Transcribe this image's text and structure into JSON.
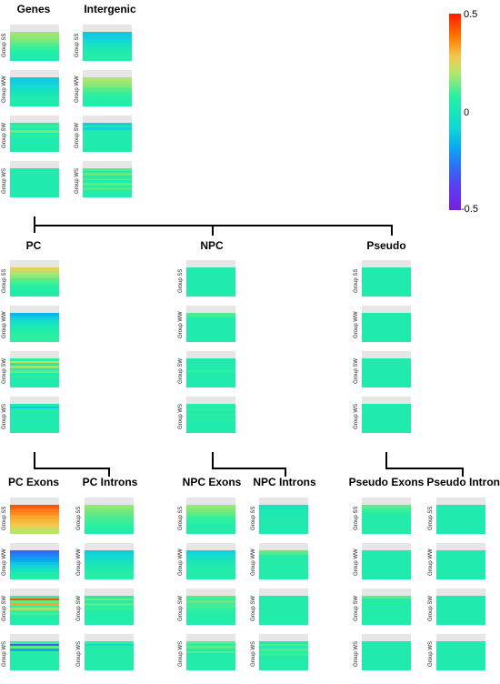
{
  "colorbar": {
    "max_label": "0.5",
    "mid_label": "0",
    "min_label": "-0.5"
  },
  "groups": [
    "Group SS",
    "Group WW",
    "Group SW",
    "Group WS"
  ],
  "panels": [
    {
      "title": "Genes",
      "rows": [
        [
          0.15,
          0.15,
          0.14,
          0.12,
          0.1,
          0.08,
          0.06,
          0.05,
          0.04,
          0.03,
          0.02,
          0.02
        ],
        [
          -0.05,
          -0.05,
          -0.04,
          -0.03,
          -0.02,
          -0.01,
          0.0,
          0.01,
          0.02,
          0.02,
          0.02,
          0.02
        ],
        [
          0.03,
          0.06,
          0.02,
          0.12,
          0.02,
          0.04,
          0.02,
          0.02,
          0.02,
          0.02,
          0.02,
          0.02
        ],
        [
          0.03,
          0.02,
          0.03,
          0.02,
          0.02,
          0.02,
          0.02,
          0.02,
          0.02,
          0.02,
          0.02,
          0.02
        ]
      ]
    },
    {
      "title": "Intergenic",
      "rows": [
        [
          -0.05,
          -0.05,
          -0.04,
          -0.03,
          -0.02,
          -0.01,
          0.0,
          0.01,
          0.02,
          0.03,
          0.03,
          0.03
        ],
        [
          0.17,
          0.17,
          0.15,
          0.13,
          0.1,
          0.08,
          0.06,
          0.05,
          0.04,
          0.03,
          0.03,
          0.03
        ],
        [
          -0.04,
          0.02,
          -0.04,
          0.02,
          0.02,
          0.02,
          0.02,
          0.02,
          0.02,
          0.02,
          0.02,
          0.02
        ],
        [
          0.08,
          0.03,
          0.1,
          0.03,
          0.08,
          0.03,
          0.1,
          0.03,
          0.08,
          0.03,
          0.03,
          0.03
        ]
      ]
    },
    {
      "title": "PC",
      "rows": [
        [
          0.23,
          0.2,
          0.17,
          0.14,
          0.11,
          0.09,
          0.07,
          0.05,
          0.04,
          0.03,
          0.03,
          0.03
        ],
        [
          -0.08,
          -0.06,
          -0.04,
          -0.02,
          0.0,
          0.01,
          0.02,
          0.03,
          0.04,
          0.05,
          0.05,
          0.05
        ],
        [
          0.05,
          0.2,
          0.03,
          0.15,
          0.02,
          0.1,
          0.02,
          0.04,
          0.02,
          0.02,
          0.02,
          0.02
        ],
        [
          0.02,
          -0.05,
          0.03,
          0.02,
          0.02,
          0.02,
          0.02,
          0.02,
          0.02,
          0.02,
          0.02,
          0.02
        ]
      ]
    },
    {
      "title": "NPC",
      "rows": [
        [
          0.02,
          0.02,
          0.02,
          0.02,
          0.02,
          0.02,
          0.02,
          0.02,
          0.02,
          0.02,
          0.02,
          0.02
        ],
        [
          0.08,
          0.06,
          0.02,
          0.02,
          0.02,
          0.02,
          0.02,
          0.02,
          0.02,
          0.02,
          0.02,
          0.02
        ],
        [
          0.02,
          0.02,
          0.02,
          0.02,
          0.02,
          0.05,
          0.02,
          0.02,
          0.02,
          0.02,
          0.02,
          0.02
        ],
        [
          0.04,
          0.02,
          0.05,
          0.02,
          0.05,
          0.02,
          0.04,
          0.02,
          0.02,
          0.02,
          0.02,
          0.02
        ]
      ]
    },
    {
      "title": "Pseudo",
      "rows": [
        [
          0.02,
          0.02,
          0.02,
          0.02,
          0.02,
          0.02,
          0.02,
          0.02,
          0.02,
          0.02,
          0.02,
          0.02
        ],
        [
          0.02,
          0.02,
          0.02,
          0.02,
          0.02,
          0.02,
          0.02,
          0.02,
          0.02,
          0.02,
          0.02,
          0.02
        ],
        [
          0.02,
          0.02,
          0.02,
          0.02,
          0.02,
          0.02,
          0.02,
          0.02,
          0.02,
          0.02,
          0.02,
          0.02
        ],
        [
          0.02,
          0.02,
          0.02,
          0.02,
          0.02,
          0.02,
          0.02,
          0.02,
          0.02,
          0.02,
          0.02,
          0.02
        ]
      ]
    },
    {
      "title": "PC Exons",
      "rows": [
        [
          0.45,
          0.42,
          0.4,
          0.38,
          0.35,
          0.33,
          0.3,
          0.27,
          0.25,
          0.22,
          0.2,
          0.18
        ],
        [
          -0.22,
          -0.18,
          -0.15,
          -0.12,
          -0.09,
          -0.06,
          -0.04,
          -0.02,
          0.0,
          0.02,
          0.03,
          0.04
        ],
        [
          0.05,
          0.45,
          0.1,
          0.35,
          0.05,
          0.15,
          0.05,
          0.08,
          0.03,
          0.03,
          0.03,
          0.03
        ],
        [
          0.05,
          -0.25,
          0.1,
          -0.1,
          0.05,
          0.03,
          0.03,
          0.03,
          0.03,
          0.03,
          0.03,
          0.03
        ]
      ]
    },
    {
      "title": "PC Introns",
      "rows": [
        [
          0.15,
          0.14,
          0.12,
          0.1,
          0.09,
          0.08,
          0.07,
          0.06,
          0.05,
          0.04,
          0.03,
          0.03
        ],
        [
          -0.05,
          -0.04,
          -0.03,
          -0.02,
          -0.01,
          0.0,
          0.01,
          0.02,
          0.03,
          0.04,
          0.04,
          0.04
        ],
        [
          0.03,
          0.12,
          0.03,
          0.1,
          0.03,
          0.05,
          0.03,
          0.03,
          0.03,
          0.03,
          0.03,
          0.03
        ],
        [
          0.05,
          -0.03,
          0.03,
          0.03,
          0.03,
          0.03,
          0.03,
          0.03,
          0.03,
          0.03,
          0.03,
          0.03
        ]
      ]
    },
    {
      "title": "NPC Exons",
      "rows": [
        [
          0.15,
          0.14,
          0.12,
          0.1,
          0.08,
          0.06,
          0.05,
          0.04,
          0.03,
          0.03,
          0.03,
          0.03
        ],
        [
          -0.04,
          -0.03,
          -0.02,
          -0.01,
          0.0,
          0.01,
          0.02,
          0.03,
          0.03,
          0.03,
          0.03,
          0.03
        ],
        [
          0.08,
          0.05,
          0.1,
          0.06,
          0.08,
          0.05,
          0.04,
          0.03,
          0.03,
          0.03,
          0.03,
          0.03
        ],
        [
          0.09,
          0.03,
          0.09,
          0.03,
          0.09,
          0.03,
          0.03,
          0.03,
          0.03,
          0.03,
          0.03,
          0.03
        ]
      ]
    },
    {
      "title": "NPC Introns",
      "rows": [
        [
          0.0,
          0.0,
          0.01,
          0.01,
          0.01,
          0.02,
          0.02,
          0.02,
          0.02,
          0.02,
          0.02,
          0.02
        ],
        [
          0.1,
          0.08,
          0.03,
          0.03,
          0.03,
          0.03,
          0.03,
          0.03,
          0.03,
          0.03,
          0.03,
          0.03
        ],
        [
          0.03,
          0.03,
          0.03,
          0.03,
          0.03,
          0.03,
          0.03,
          0.03,
          0.03,
          0.03,
          0.03,
          0.03
        ],
        [
          0.03,
          0.08,
          0.03,
          0.08,
          0.03,
          0.06,
          0.03,
          0.03,
          0.03,
          0.03,
          0.03,
          0.03
        ]
      ]
    },
    {
      "title": "Pseudo Exons",
      "rows": [
        [
          0.1,
          0.08,
          0.06,
          0.04,
          0.03,
          0.03,
          0.03,
          0.03,
          0.03,
          0.03,
          0.03,
          0.03
        ],
        [
          0.02,
          0.02,
          0.02,
          0.02,
          0.02,
          0.02,
          0.02,
          0.02,
          0.02,
          0.02,
          0.02,
          0.02
        ],
        [
          0.1,
          0.03,
          0.03,
          0.03,
          0.03,
          0.03,
          0.03,
          0.03,
          0.03,
          0.03,
          0.03,
          0.03
        ],
        [
          0.02,
          0.02,
          0.02,
          0.02,
          0.02,
          0.02,
          0.02,
          0.02,
          0.02,
          0.02,
          0.02,
          0.02
        ]
      ]
    },
    {
      "title": "Pseudo Introns",
      "rows": [
        [
          0.02,
          0.02,
          0.02,
          0.02,
          0.02,
          0.02,
          0.02,
          0.02,
          0.02,
          0.02,
          0.02,
          0.02
        ],
        [
          0.02,
          0.02,
          0.02,
          0.02,
          0.02,
          0.02,
          0.02,
          0.02,
          0.02,
          0.02,
          0.02,
          0.02
        ],
        [
          0.02,
          0.02,
          0.02,
          0.02,
          0.02,
          0.02,
          0.02,
          0.02,
          0.02,
          0.02,
          0.02,
          0.02
        ],
        [
          0.02,
          0.02,
          0.02,
          0.02,
          0.02,
          0.02,
          0.02,
          0.02,
          0.02,
          0.02,
          0.02,
          0.02
        ]
      ]
    }
  ]
}
